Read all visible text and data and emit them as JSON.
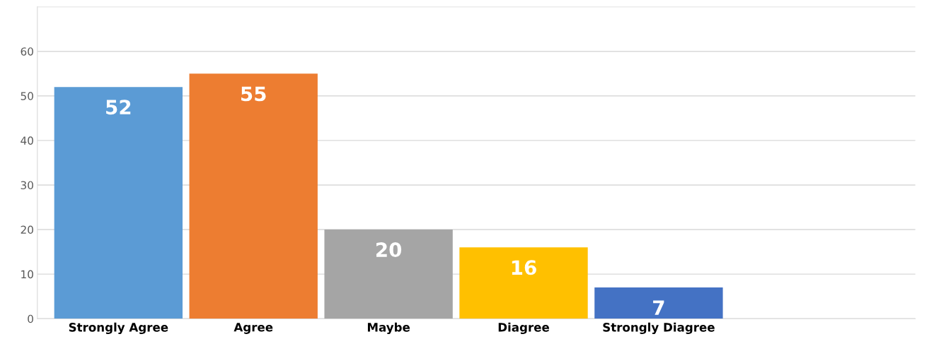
{
  "chart_data": {
    "type": "bar",
    "categories": [
      "Strongly Agree",
      "Agree",
      "Maybe",
      "Diagree",
      "Strongly Diagree"
    ],
    "values": [
      52,
      55,
      20,
      16,
      7
    ],
    "colors": [
      "#5b9bd5",
      "#ed7d31",
      "#a5a5a5",
      "#ffc000",
      "#4472c4"
    ],
    "ylim": [
      0,
      70
    ],
    "yticks": [
      0,
      10,
      20,
      30,
      40,
      50,
      60,
      {
        "value": 70,
        "label": null
      }
    ],
    "grid": "y",
    "data_labels": true
  }
}
